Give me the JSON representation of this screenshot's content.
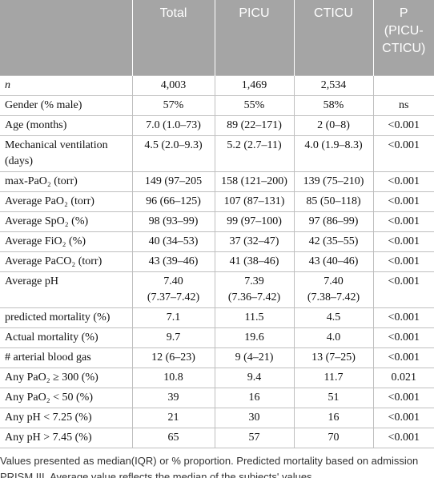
{
  "table": {
    "columns": [
      "Total",
      "PICU",
      "CTICU",
      "P\n(PICU-\nCTICU)"
    ],
    "rows": [
      [
        "n",
        "4,003",
        "1,469",
        "2,534",
        null
      ],
      [
        "Gender (% male)",
        "57%",
        "55%",
        "58%",
        "ns"
      ],
      [
        "Age (months)",
        "7.0 (1.0–73)",
        "89 (22–171)",
        "2 (0–8)",
        "<0.001"
      ],
      [
        "Mechanical ventilation\n(days)",
        "4.5 (2.0–9.3)",
        "5.2 (2.7–11)",
        "4.0 (1.9–8.3)",
        "<0.001"
      ],
      [
        "max-PaO₂ (torr)",
        "149 (97–205",
        "158 (121–200)",
        "139 (75–210)",
        "<0.001"
      ],
      [
        "Average PaO₂ (torr)",
        "96 (66–125)",
        "107 (87–131)",
        "85 (50–118)",
        "<0.001"
      ],
      [
        "Average SpO₂ (%)",
        "98 (93–99)",
        "99 (97–100)",
        "97 (86–99)",
        "<0.001"
      ],
      [
        "Average FiO₂ (%)",
        "40 (34–53)",
        "37 (32–47)",
        "42 (35–55)",
        "<0.001"
      ],
      [
        "Average PaCO₂ (torr)",
        "43 (39–46)",
        "41 (38–46)",
        "43 (40–46)",
        "<0.001"
      ],
      [
        "Average pH",
        "7.40\n(7.37–7.42)",
        "7.39\n(7.36–7.42)",
        "7.40\n(7.38–7.42)",
        "<0.001"
      ],
      [
        "predicted mortality (%)",
        "7.1",
        "11.5",
        "4.5",
        "<0.001"
      ],
      [
        "Actual mortality (%)",
        "9.7",
        "19.6",
        "4.0",
        "<0.001"
      ],
      [
        "# arterial blood gas",
        "12 (6–23)",
        "9 (4–21)",
        "13 (7–25)",
        "<0.001"
      ],
      [
        "Any PaO₂ ≥ 300 (%)",
        "10.8",
        "9.4",
        "11.7",
        "0.021"
      ],
      [
        "Any PaO₂ < 50 (%)",
        "39",
        "16",
        "51",
        "<0.001"
      ],
      [
        "Any pH < 7.25 (%)",
        "21",
        "30",
        "16",
        "<0.001"
      ],
      [
        "Any pH > 7.45 (%)",
        "65",
        "57",
        "70",
        "<0.001"
      ]
    ],
    "footnote": "Values presented as median(IQR) or % proportion. Predicted mortality based on admission PRISM III. Average value reflects the median of the subjects' values."
  }
}
